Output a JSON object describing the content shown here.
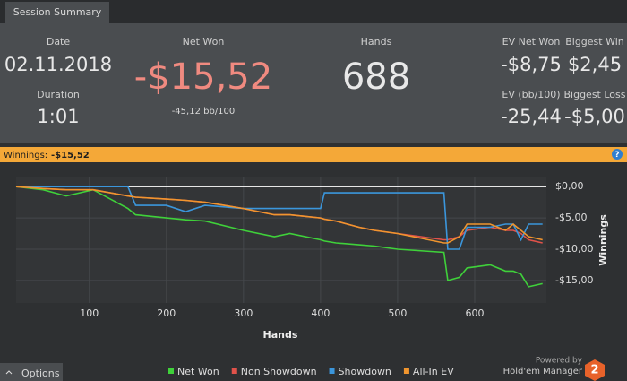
{
  "tab": "Session Summary",
  "stats": {
    "date_label": "Date",
    "date": "02.11.2018",
    "duration_label": "Duration",
    "duration": "1:01",
    "net_won_label": "Net Won",
    "net_won": "-$15,52",
    "bb_per_100": "-45,12 bb/100",
    "hands_label": "Hands",
    "hands": "688",
    "ev_net_won_label": "EV Net Won",
    "ev_net_won": "-$8,75",
    "biggest_win_label": "Biggest Win",
    "biggest_win": "$2,45",
    "ev_bb_label": "EV (bb/100)",
    "ev_bb": "-25,44",
    "biggest_loss_label": "Biggest Loss",
    "biggest_loss": "-$5,00"
  },
  "banner": {
    "label": "Winnings:",
    "value": "-$15,52",
    "help": "?"
  },
  "chart_data": {
    "type": "line",
    "x_label": "Hands",
    "y_label": "Winnings",
    "x": [
      5,
      40,
      70,
      105,
      150,
      160,
      200,
      225,
      250,
      300,
      340,
      360,
      400,
      405,
      420,
      450,
      470,
      500,
      560,
      565,
      580,
      590,
      620,
      640,
      650,
      660,
      670,
      688
    ],
    "series": [
      {
        "name": "Net Won",
        "color": "#3fd13a",
        "values": [
          0,
          -0.5,
          -1.5,
          -0.5,
          -3.5,
          -4.5,
          -5,
          -5.3,
          -5.5,
          -7,
          -8,
          -7.5,
          -8.5,
          -8.7,
          -9,
          -9.3,
          -9.5,
          -10,
          -10.5,
          -15,
          -14.5,
          -13,
          -12.5,
          -13.5,
          -13.5,
          -14,
          -16,
          -15.5
        ]
      },
      {
        "name": "Non Showdown",
        "color": "#e0524a",
        "values": [
          0,
          -0.3,
          -0.5,
          -0.5,
          -1.5,
          -1.7,
          -2,
          -2.2,
          -2.5,
          -3.5,
          -4.5,
          -4.5,
          -5,
          -5.2,
          -5.5,
          -6.5,
          -7,
          -7.5,
          -8.5,
          -8.5,
          -8,
          -7,
          -6.5,
          -7,
          -7,
          -7.5,
          -8.5,
          -9
        ]
      },
      {
        "name": "Showdown",
        "color": "#3b96dc",
        "values": [
          0,
          0,
          0,
          0,
          0,
          -3,
          -3,
          -4,
          -3,
          -3.5,
          -3.5,
          -3.5,
          -3.5,
          -1,
          -1,
          -1,
          -1,
          -1,
          -1,
          -10,
          -10,
          -6.5,
          -6.5,
          -6,
          -6,
          -8.5,
          -6,
          -6
        ]
      },
      {
        "name": "All-In EV",
        "color": "#f0952e",
        "values": [
          0,
          -0.3,
          -0.5,
          -0.5,
          -1.5,
          -1.7,
          -2,
          -2.2,
          -2.5,
          -3.5,
          -4.5,
          -4.5,
          -5,
          -5.2,
          -5.5,
          -6.5,
          -7,
          -7.5,
          -9,
          -9,
          -8,
          -6,
          -6,
          -7,
          -6,
          -7,
          -8,
          -8.5
        ]
      }
    ],
    "xlim": [
      5,
      693
    ],
    "xticks": [
      100,
      200,
      300,
      400,
      500,
      600
    ],
    "ylim": [
      -18.6,
      1.6
    ],
    "yticks": [
      {
        "value": 0,
        "label": "$0,00"
      },
      {
        "value": -5,
        "label": "-$5,00"
      },
      {
        "value": -10,
        "label": "-$10,00"
      },
      {
        "value": -15,
        "label": "-$15,00"
      }
    ],
    "grid": true,
    "legend": "bottom"
  },
  "footer": {
    "options": "Options",
    "powered_by": "Powered by",
    "brand": "Hold'em Manager",
    "logo": "2"
  }
}
